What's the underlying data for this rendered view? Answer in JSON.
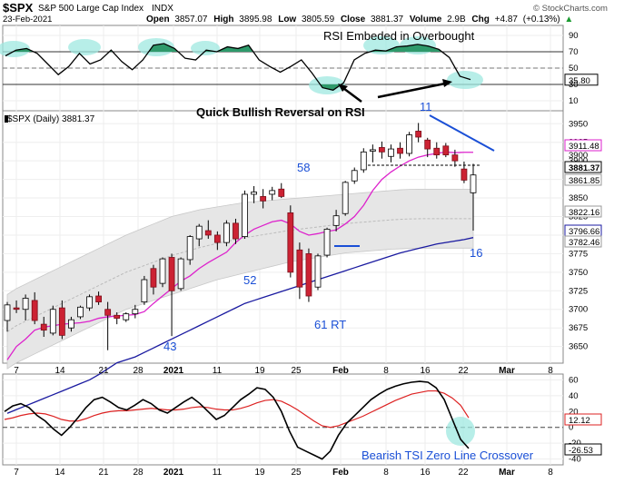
{
  "header": {
    "symbol": "$SPX",
    "name": "S&P 500 Large Cap Index",
    "exchange": "INDX",
    "date": "23-Feb-2021",
    "open_label": "Open",
    "open": "3857.07",
    "high_label": "High",
    "high": "3895.98",
    "low_label": "Low",
    "low": "3805.59",
    "close_label": "Close",
    "close": "3881.37",
    "volume_label": "Volume",
    "volume": "2.9B",
    "chg_label": "Chg",
    "chg": "+4.87",
    "chg_pct": "(+0.13%)",
    "chg_arrow": "▲",
    "copyright": "© StockCharts.com"
  },
  "colors": {
    "up_candle": "#ffffff",
    "down_candle": "#cc2233",
    "short_ma": "#dd22cc",
    "long_ma": "#1a1aa0",
    "tsi_line": "#000000",
    "tsi_signal": "#dd2222",
    "rsi_line": "#000000",
    "highlight": "#9fe8e0",
    "annotation_blue": "#1a4fd6",
    "band_fill": "#e6e6e6"
  },
  "annotations": {
    "rsi_title": "RSI Embeded in Overbought",
    "reversal_text": "Quick Bullish Reversal on RSI",
    "tsi_text": "Bearish TSI Zero Line Crossover",
    "label_43": "43",
    "label_52": "52",
    "label_58": "58",
    "label_61": "61 RT",
    "label_11": "11",
    "label_16": "16"
  },
  "chart_data": [
    {
      "panel": "rsi",
      "type": "line",
      "y_ticks": [
        "90",
        "70",
        "50",
        "30",
        "10"
      ],
      "ylim": [
        0,
        100
      ],
      "overbought": 70,
      "oversold": 30,
      "last_value": "35.80",
      "values": [
        65,
        72,
        74,
        68,
        55,
        42,
        52,
        68,
        55,
        60,
        72,
        58,
        48,
        60,
        78,
        80,
        74,
        62,
        60,
        72,
        70,
        76,
        74,
        78,
        60,
        52,
        45,
        52,
        60,
        44,
        26,
        23,
        32,
        60,
        68,
        72,
        71,
        76,
        77,
        79,
        77,
        73,
        63,
        40,
        36
      ]
    },
    {
      "panel": "price",
      "type": "candlestick",
      "label": "$SPX (Daily) 3881.37",
      "y_ticks": [
        3650,
        3675,
        3700,
        3725,
        3750,
        3775,
        3800,
        3825,
        3850,
        3875,
        3900,
        3925,
        3950
      ],
      "ylim": [
        3630,
        3965
      ],
      "x_labels": [
        "7",
        "14",
        "21",
        "28",
        "2021",
        "11",
        "19",
        "25",
        "Feb",
        "8",
        "16",
        "22",
        "Mar",
        "8"
      ],
      "right_tags": [
        {
          "value": "3911.48",
          "kind": "short_ma"
        },
        {
          "value": "3900",
          "kind": "tick"
        },
        {
          "value": "3881.37",
          "kind": "close"
        },
        {
          "value": "3861.85",
          "kind": "band_upper"
        },
        {
          "value": "3822.16",
          "kind": "band_mid"
        },
        {
          "value": "3796.66",
          "kind": "long_ma"
        },
        {
          "value": "3782.46",
          "kind": "band_lower"
        }
      ],
      "candles": [
        {
          "o": 3685,
          "h": 3710,
          "l": 3670,
          "c": 3706
        },
        {
          "o": 3702,
          "h": 3712,
          "l": 3695,
          "c": 3700
        },
        {
          "o": 3700,
          "h": 3720,
          "l": 3685,
          "c": 3715
        },
        {
          "o": 3712,
          "h": 3723,
          "l": 3680,
          "c": 3685
        },
        {
          "o": 3680,
          "h": 3690,
          "l": 3663,
          "c": 3672
        },
        {
          "o": 3668,
          "h": 3705,
          "l": 3665,
          "c": 3700
        },
        {
          "o": 3702,
          "h": 3712,
          "l": 3660,
          "c": 3665
        },
        {
          "o": 3675,
          "h": 3690,
          "l": 3670,
          "c": 3686
        },
        {
          "o": 3690,
          "h": 3705,
          "l": 3687,
          "c": 3703
        },
        {
          "o": 3702,
          "h": 3720,
          "l": 3698,
          "c": 3717
        },
        {
          "o": 3718,
          "h": 3724,
          "l": 3706,
          "c": 3710
        },
        {
          "o": 3700,
          "h": 3710,
          "l": 3645,
          "c": 3692
        },
        {
          "o": 3692,
          "h": 3696,
          "l": 3680,
          "c": 3688
        },
        {
          "o": 3686,
          "h": 3696,
          "l": 3683,
          "c": 3694
        },
        {
          "o": 3694,
          "h": 3706,
          "l": 3688,
          "c": 3700
        },
        {
          "o": 3710,
          "h": 3745,
          "l": 3706,
          "c": 3740
        },
        {
          "o": 3755,
          "h": 3760,
          "l": 3720,
          "c": 3730
        },
        {
          "o": 3735,
          "h": 3770,
          "l": 3730,
          "c": 3768
        },
        {
          "o": 3770,
          "h": 3775,
          "l": 3664,
          "c": 3725
        },
        {
          "o": 3728,
          "h": 3770,
          "l": 3725,
          "c": 3768
        },
        {
          "o": 3767,
          "h": 3800,
          "l": 3760,
          "c": 3798
        },
        {
          "o": 3795,
          "h": 3815,
          "l": 3785,
          "c": 3812
        },
        {
          "o": 3806,
          "h": 3820,
          "l": 3795,
          "c": 3800
        },
        {
          "o": 3800,
          "h": 3805,
          "l": 3780,
          "c": 3790
        },
        {
          "o": 3790,
          "h": 3820,
          "l": 3785,
          "c": 3816
        },
        {
          "o": 3816,
          "h": 3822,
          "l": 3788,
          "c": 3795
        },
        {
          "o": 3798,
          "h": 3860,
          "l": 3795,
          "c": 3855
        },
        {
          "o": 3855,
          "h": 3866,
          "l": 3843,
          "c": 3858
        },
        {
          "o": 3852,
          "h": 3862,
          "l": 3836,
          "c": 3846
        },
        {
          "o": 3855,
          "h": 3865,
          "l": 3847,
          "c": 3860
        },
        {
          "o": 3862,
          "h": 3870,
          "l": 3850,
          "c": 3852
        },
        {
          "o": 3830,
          "h": 3840,
          "l": 3743,
          "c": 3750
        },
        {
          "o": 3780,
          "h": 3790,
          "l": 3714,
          "c": 3730
        },
        {
          "o": 3775,
          "h": 3782,
          "l": 3710,
          "c": 3718
        },
        {
          "o": 3730,
          "h": 3775,
          "l": 3726,
          "c": 3772
        },
        {
          "o": 3773,
          "h": 3810,
          "l": 3770,
          "c": 3808
        },
        {
          "o": 3813,
          "h": 3834,
          "l": 3805,
          "c": 3826
        },
        {
          "o": 3829,
          "h": 3873,
          "l": 3826,
          "c": 3871
        },
        {
          "o": 3873,
          "h": 3891,
          "l": 3869,
          "c": 3887
        },
        {
          "o": 3888,
          "h": 3917,
          "l": 3884,
          "c": 3912
        },
        {
          "o": 3913,
          "h": 3922,
          "l": 3898,
          "c": 3915
        },
        {
          "o": 3918,
          "h": 3926,
          "l": 3903,
          "c": 3912
        },
        {
          "o": 3906,
          "h": 3922,
          "l": 3898,
          "c": 3916
        },
        {
          "o": 3917,
          "h": 3925,
          "l": 3903,
          "c": 3910
        },
        {
          "o": 3910,
          "h": 3939,
          "l": 3906,
          "c": 3935
        },
        {
          "o": 3940,
          "h": 3951,
          "l": 3925,
          "c": 3932
        },
        {
          "o": 3928,
          "h": 3931,
          "l": 3905,
          "c": 3916
        },
        {
          "o": 3917,
          "h": 3925,
          "l": 3903,
          "c": 3908
        },
        {
          "o": 3920,
          "h": 3924,
          "l": 3905,
          "c": 3908
        },
        {
          "o": 3908,
          "h": 3915,
          "l": 3892,
          "c": 3900
        },
        {
          "o": 3889,
          "h": 3899,
          "l": 3870,
          "c": 3874
        },
        {
          "o": 3857,
          "h": 3896,
          "l": 3806,
          "c": 3881
        }
      ],
      "short_ma": [
        3632,
        3650,
        3660,
        3672,
        3676,
        3678,
        3680,
        3681,
        3682,
        3684,
        3688,
        3690,
        3691,
        3692,
        3693,
        3697,
        3708,
        3718,
        3728,
        3738,
        3745,
        3755,
        3763,
        3770,
        3777,
        3790,
        3800,
        3808,
        3813,
        3818,
        3820,
        3815,
        3805,
        3800,
        3802,
        3805,
        3807,
        3815,
        3825,
        3840,
        3860,
        3875,
        3885,
        3893,
        3900,
        3905,
        3908,
        3910,
        3912,
        3911,
        3911.5,
        3911.48
      ],
      "long_ma": [
        3560,
        3565,
        3570,
        3575,
        3580,
        3585,
        3590,
        3595,
        3600,
        3605,
        3612,
        3620,
        3628,
        3632,
        3636,
        3642,
        3648,
        3654,
        3660,
        3666,
        3672,
        3678,
        3684,
        3690,
        3696,
        3702,
        3708,
        3712,
        3716,
        3720,
        3724,
        3728,
        3732,
        3736,
        3740,
        3744,
        3748,
        3752,
        3756,
        3760,
        3764,
        3768,
        3772,
        3776,
        3779,
        3782,
        3785,
        3788,
        3790,
        3792,
        3794,
        3796.66
      ],
      "band_upper": [
        3720,
        3728,
        3734,
        3740,
        3746,
        3752,
        3758,
        3764,
        3770,
        3776,
        3782,
        3788,
        3794,
        3800,
        3805,
        3810,
        3815,
        3820,
        3825,
        3828,
        3831,
        3834,
        3836,
        3838,
        3840,
        3842,
        3844,
        3845,
        3846,
        3847,
        3848,
        3849,
        3850,
        3851,
        3852,
        3853,
        3854,
        3855,
        3856,
        3857,
        3858,
        3859,
        3860,
        3861,
        3861.5,
        3861.8,
        3861.85,
        3861.85,
        3861.85,
        3861.85,
        3861.85,
        3861.85
      ],
      "band_lower": [
        3620,
        3628,
        3634,
        3640,
        3646,
        3652,
        3658,
        3664,
        3670,
        3676,
        3682,
        3688,
        3694,
        3700,
        3704,
        3708,
        3712,
        3716,
        3720,
        3724,
        3728,
        3732,
        3736,
        3740,
        3743,
        3746,
        3749,
        3752,
        3755,
        3758,
        3761,
        3764,
        3766,
        3768,
        3770,
        3772,
        3774,
        3776,
        3777,
        3778,
        3779,
        3780,
        3781,
        3781.5,
        3782,
        3782.2,
        3782.4,
        3782.46,
        3782.46,
        3782.46,
        3782.46,
        3782.46
      ]
    },
    {
      "panel": "tsi",
      "type": "line",
      "y_ticks": [
        "60",
        "40",
        "20",
        "0",
        "-20",
        "-40"
      ],
      "ylim": [
        -45,
        65
      ],
      "last_tsi": "-26.53",
      "last_signal": "12.12",
      "x_labels": [
        "7",
        "14",
        "21",
        "28",
        "2021",
        "11",
        "19",
        "25",
        "Feb",
        "8",
        "16",
        "22",
        "Mar",
        "8"
      ],
      "tsi": [
        20,
        27,
        30,
        25,
        15,
        8,
        -2,
        -10,
        0,
        12,
        25,
        35,
        38,
        32,
        25,
        22,
        28,
        35,
        30,
        22,
        18,
        25,
        32,
        38,
        30,
        20,
        10,
        15,
        25,
        35,
        42,
        50,
        48,
        38,
        20,
        -5,
        -25,
        -30,
        -35,
        -40,
        -30,
        -10,
        5,
        15,
        25,
        35,
        42,
        48,
        52,
        55,
        57,
        58,
        57,
        50,
        35,
        10,
        -15,
        -26.53
      ],
      "signal": [
        10,
        12,
        15,
        17,
        18,
        17,
        14,
        10,
        8,
        8,
        11,
        15,
        18,
        20,
        21,
        21,
        22,
        23,
        24,
        23,
        22,
        22,
        23,
        25,
        26,
        25,
        23,
        22,
        22,
        24,
        27,
        31,
        34,
        35,
        33,
        28,
        22,
        15,
        8,
        2,
        0,
        2,
        6,
        10,
        14,
        19,
        24,
        29,
        34,
        38,
        42,
        44,
        46,
        46,
        43,
        37,
        28,
        12.12
      ]
    }
  ]
}
